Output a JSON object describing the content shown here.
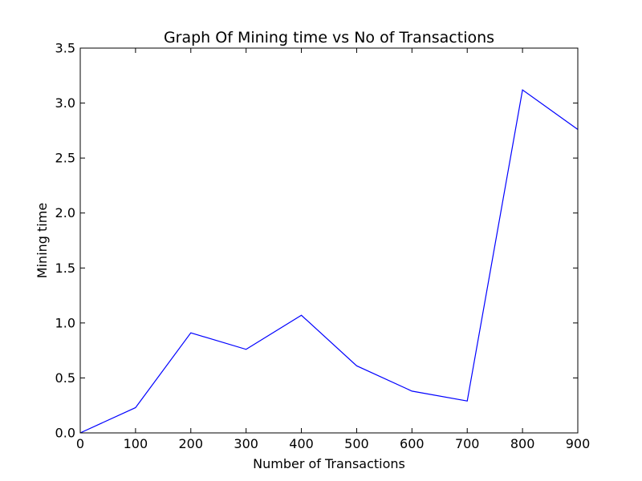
{
  "chart_data": {
    "type": "line",
    "title": "Graph Of Mining time vs No of Transactions",
    "xlabel": "Number of Transactions",
    "ylabel": "Mining time",
    "xlim": [
      0,
      900
    ],
    "ylim": [
      0,
      3.5
    ],
    "xticks": [
      "0",
      "100",
      "200",
      "300",
      "400",
      "500",
      "600",
      "700",
      "800",
      "900"
    ],
    "yticks": [
      "0.0",
      "0.5",
      "1.0",
      "1.5",
      "2.0",
      "2.5",
      "3.0",
      "3.5"
    ],
    "grid": false,
    "series": [
      {
        "color": "#0000ff",
        "x": [
          0,
          100,
          200,
          300,
          400,
          500,
          600,
          700,
          800,
          900
        ],
        "y": [
          0.0,
          0.23,
          0.91,
          0.76,
          1.07,
          0.61,
          0.38,
          0.29,
          3.12,
          2.76
        ]
      }
    ]
  }
}
